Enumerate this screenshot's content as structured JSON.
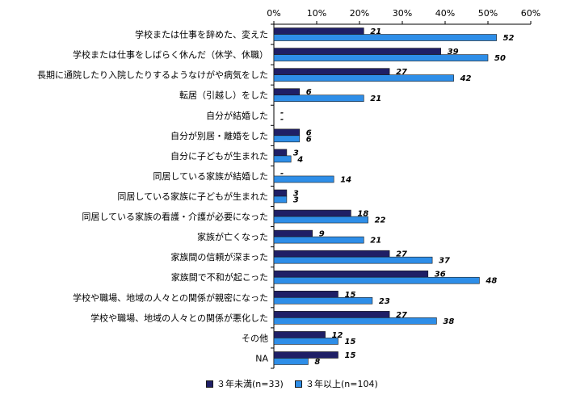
{
  "chart_data": {
    "type": "bar",
    "orientation": "horizontal",
    "categories": [
      "学校または仕事を辞めた、変えた",
      "学校または仕事をしばらく休んだ（休学、休職）",
      "長期に通院したり入院したりするようなけがや病気をした",
      "転居（引越し）をした",
      "自分が結婚した",
      "自分が別居・離婚をした",
      "自分に子どもが生まれた",
      "同居している家族が結婚した",
      "同居している家族に子どもが生まれた",
      "同居している家族の看護・介護が必要になった",
      "家族が亡くなった",
      "家族間の信頼が深まった",
      "家族間で不和が起こった",
      "学校や職場、地域の人々との関係が親密になった",
      "学校や職場、地域の人々との関係が悪化した",
      "その他",
      "NA"
    ],
    "series": [
      {
        "name": "３年未満(n=33)",
        "color": "#1f1f66",
        "values": [
          21,
          39,
          27,
          6,
          0,
          6,
          3,
          0,
          3,
          18,
          9,
          27,
          36,
          15,
          27,
          12,
          15
        ],
        "labels": [
          "21",
          "39",
          "27",
          "6",
          "-",
          "6",
          "3",
          "-",
          "3",
          "18",
          "9",
          "27",
          "36",
          "15",
          "27",
          "12",
          "15"
        ]
      },
      {
        "name": "３年以上(n=104)",
        "color": "#2e8ee8",
        "values": [
          52,
          50,
          42,
          21,
          0,
          6,
          4,
          14,
          3,
          22,
          21,
          37,
          48,
          23,
          38,
          15,
          8
        ],
        "labels": [
          "52",
          "50",
          "42",
          "21",
          "-",
          "6",
          "4",
          "14",
          "3",
          "22",
          "21",
          "37",
          "48",
          "23",
          "38",
          "15",
          "8"
        ]
      }
    ],
    "x_ticks": [
      "0%",
      "10%",
      "20%",
      "30%",
      "40%",
      "50%",
      "60%"
    ],
    "xlim": [
      0,
      60
    ],
    "grid": false,
    "legend_position": "bottom"
  }
}
